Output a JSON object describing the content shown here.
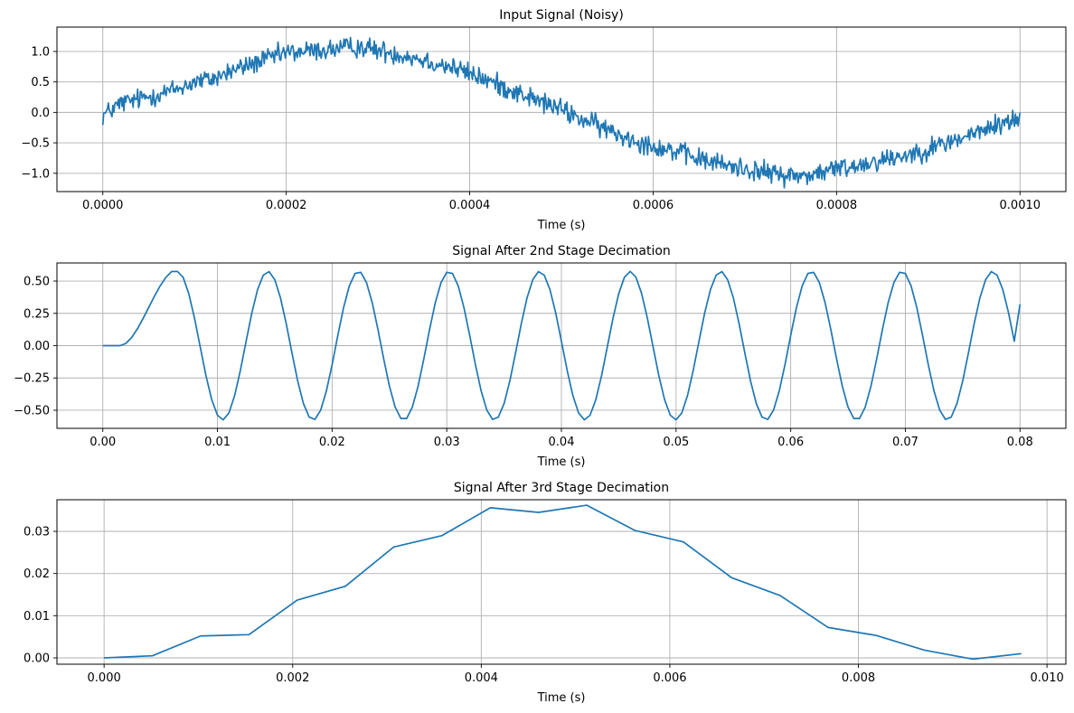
{
  "chart_data": [
    {
      "type": "line",
      "title": "Input Signal (Noisy)",
      "xlabel": "Time (s)",
      "ylabel": "",
      "xlim": [
        -5e-05,
        0.00105
      ],
      "ylim": [
        -1.3,
        1.4
      ],
      "xticks": [
        0,
        0.0002,
        0.0004,
        0.0006,
        0.0008,
        0.001
      ],
      "xtick_labels": [
        "0.0000",
        "0.0002",
        "0.0004",
        "0.0006",
        "0.0008",
        "0.0010"
      ],
      "yticks": [
        -1.0,
        -0.5,
        0.0,
        0.5,
        1.0
      ],
      "ytick_labels": [
        "−1.0",
        "−0.5",
        "0.0",
        "0.5",
        "1.0"
      ],
      "grid": true,
      "color": "#1f77b4",
      "series": [
        {
          "x": [
            0,
            2e-05,
            4e-05,
            6e-05,
            8e-05,
            0.0001,
            0.00012,
            0.00014,
            0.00016,
            0.00018,
            0.0002,
            0.00022,
            0.00024,
            0.00026,
            0.00028,
            0.0003,
            0.00032,
            0.00034,
            0.00036,
            0.00038,
            0.0004,
            0.00042,
            0.00044,
            0.00046,
            0.00048,
            0.0005,
            0.00052,
            0.00054,
            0.00056,
            0.00058,
            0.0006,
            0.00062,
            0.00064,
            0.00066,
            0.00068,
            0.0007,
            0.00072,
            0.00074,
            0.00076,
            0.00078,
            0.0008,
            0.00082,
            0.00084,
            0.00086,
            0.00088,
            0.0009,
            0.00092,
            0.00094,
            0.00096,
            0.00098,
            0.001
          ],
          "y": [
            -0.05,
            0.15,
            0.22,
            0.3,
            0.38,
            0.5,
            0.55,
            0.68,
            0.78,
            0.88,
            0.98,
            1.0,
            1.02,
            1.05,
            1.08,
            1.02,
            0.96,
            0.9,
            0.82,
            0.74,
            0.64,
            0.52,
            0.4,
            0.28,
            0.16,
            0.05,
            -0.1,
            -0.22,
            -0.35,
            -0.45,
            -0.55,
            -0.62,
            -0.72,
            -0.8,
            -0.87,
            -0.92,
            -0.98,
            -1.02,
            -1.05,
            -1.0,
            -0.92,
            -0.88,
            -0.8,
            -0.75,
            -0.68,
            -0.6,
            -0.5,
            -0.4,
            -0.3,
            -0.18,
            -0.1
          ]
        }
      ]
    },
    {
      "type": "line",
      "title": "Signal After 2nd Stage Decimation",
      "xlabel": "Time (s)",
      "ylabel": "",
      "xlim": [
        -0.004,
        0.084
      ],
      "ylim": [
        -0.64,
        0.64
      ],
      "xticks": [
        0,
        0.01,
        0.02,
        0.03,
        0.04,
        0.05,
        0.06,
        0.07,
        0.08
      ],
      "xtick_labels": [
        "0.00",
        "0.01",
        "0.02",
        "0.03",
        "0.04",
        "0.05",
        "0.06",
        "0.07",
        "0.08"
      ],
      "yticks": [
        -0.5,
        -0.25,
        0,
        0.25,
        0.5
      ],
      "ytick_labels": [
        "−0.50",
        "−0.25",
        "0.00",
        "0.25",
        "0.50"
      ],
      "grid": true,
      "color": "#1f77b4",
      "series": [
        {
          "x_start": 0,
          "x_end": 0.08,
          "sample_count": 161,
          "description": "onset near 0.002 s, then sinusoid with amplitude about 0.57 and period about 0.0078 s",
          "peaks": [
            [
              0.0065,
              0.59
            ],
            [
              0.0145,
              0.57
            ],
            [
              0.0225,
              0.57
            ],
            [
              0.0305,
              0.58
            ],
            [
              0.0385,
              0.58
            ],
            [
              0.0465,
              0.57
            ],
            [
              0.0545,
              0.57
            ],
            [
              0.0625,
              0.58
            ],
            [
              0.0705,
              0.58
            ],
            [
              0.0785,
              0.57
            ]
          ],
          "troughs": [
            [
              0.0105,
              -0.57
            ],
            [
              0.0185,
              -0.57
            ],
            [
              0.0265,
              -0.57
            ],
            [
              0.0345,
              -0.56
            ],
            [
              0.0425,
              -0.57
            ],
            [
              0.0505,
              -0.57
            ],
            [
              0.0585,
              -0.56
            ],
            [
              0.0665,
              -0.57
            ],
            [
              0.0745,
              -0.56
            ]
          ],
          "end_value": 0.32
        }
      ]
    },
    {
      "type": "line",
      "title": "Signal After 3rd Stage Decimation",
      "xlabel": "Time (s)",
      "ylabel": "",
      "xlim": [
        -0.0005,
        0.0102
      ],
      "ylim": [
        -0.0015,
        0.0375
      ],
      "xticks": [
        0,
        0.002,
        0.004,
        0.006,
        0.008,
        0.01
      ],
      "xtick_labels": [
        "0.000",
        "0.002",
        "0.004",
        "0.006",
        "0.008",
        "0.010"
      ],
      "yticks": [
        0,
        0.01,
        0.02,
        0.03
      ],
      "ytick_labels": [
        "0.00",
        "0.01",
        "0.02",
        "0.03"
      ],
      "grid": true,
      "color": "#1f77b4",
      "series": [
        {
          "x": [
            0.0,
            0.000512,
            0.001024,
            0.001536,
            0.002048,
            0.00256,
            0.003072,
            0.003584,
            0.004096,
            0.004608,
            0.00512,
            0.005632,
            0.006144,
            0.006656,
            0.007168,
            0.00768,
            0.008192,
            0.008704,
            0.009216,
            0.009728
          ],
          "y": [
            0.0,
            0.0005,
            0.0052,
            0.0055,
            0.0137,
            0.017,
            0.0263,
            0.029,
            0.0356,
            0.0345,
            0.0362,
            0.0302,
            0.0275,
            0.019,
            0.0148,
            0.0072,
            0.0053,
            0.0018,
            -0.0003,
            0.001
          ]
        }
      ]
    }
  ]
}
